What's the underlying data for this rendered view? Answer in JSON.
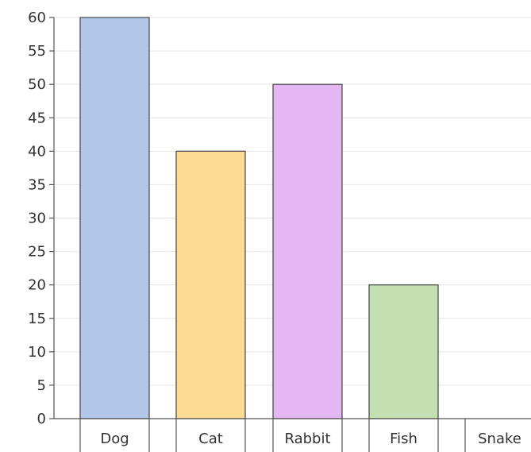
{
  "chart_data": {
    "type": "bar",
    "title": "",
    "xlabel": "",
    "ylabel": "",
    "categories": [
      "Dog",
      "Cat",
      "Rabbit",
      "Fish",
      "Snake"
    ],
    "values": [
      60,
      40,
      50,
      20,
      0
    ],
    "colors": [
      "#b2c6e8",
      "#fcdc94",
      "#e4b6f2",
      "#c4e0b2",
      "#ffffff"
    ],
    "ylim": [
      0,
      60
    ],
    "ytick_step": 5,
    "yticks": [
      "0",
      "5",
      "10",
      "15",
      "20",
      "25",
      "30",
      "35",
      "40",
      "45",
      "50",
      "55",
      "60"
    ],
    "grid": true,
    "legend": "none"
  }
}
